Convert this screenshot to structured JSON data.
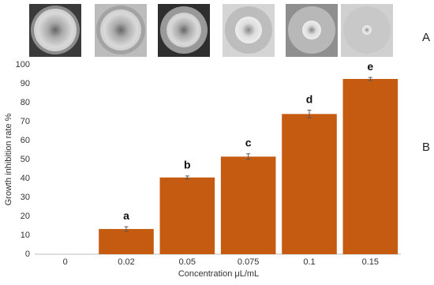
{
  "chart_data": {
    "type": "bar",
    "panel_labels": [
      "A",
      "B"
    ],
    "xlabel": "Concentration μL/mL",
    "ylabel": "Growth inhibition rate %",
    "categories": [
      "0",
      "0.02",
      "0.05",
      "0.075",
      "0.1",
      "0.15"
    ],
    "values": [
      0,
      13.3,
      40.5,
      51.5,
      74,
      92.5
    ],
    "errors": [
      0,
      1.2,
      0.8,
      1.5,
      2,
      0.8
    ],
    "significance_labels": [
      null,
      "a",
      "b",
      "c",
      "d",
      "e"
    ],
    "color": "#c55a11",
    "ylim": [
      0,
      100
    ],
    "yticks": [
      0,
      10,
      20,
      30,
      40,
      50,
      60,
      70,
      80,
      90,
      100
    ],
    "grid": false
  }
}
